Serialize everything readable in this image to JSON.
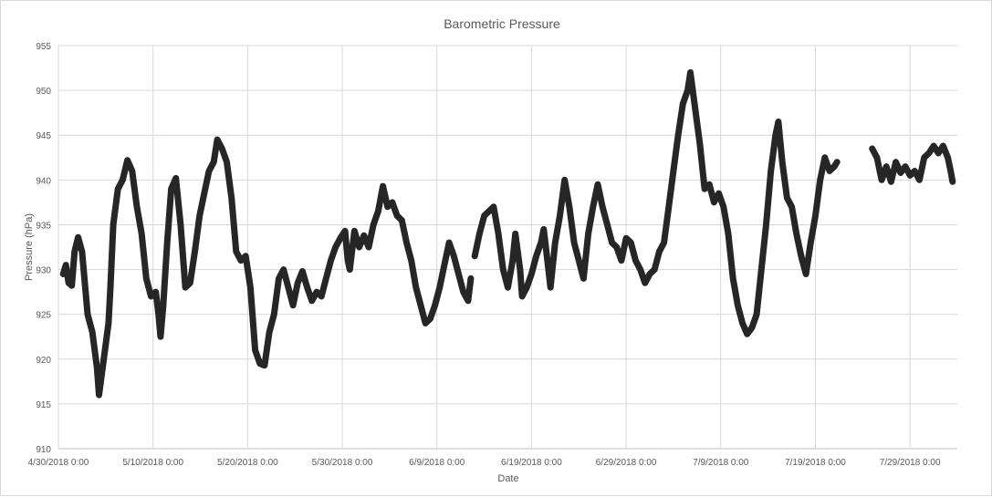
{
  "chart_data": {
    "type": "line",
    "title": "Barometric Pressure",
    "xlabel": "Date",
    "ylabel": "Pressure (hPa)",
    "x_range_days": [
      "4/30/2018 0:00",
      "8/3/2018 0:00"
    ],
    "ylim": [
      910,
      955
    ],
    "y_ticks": [
      910,
      915,
      920,
      925,
      930,
      935,
      940,
      945,
      950,
      955
    ],
    "x_ticks": [
      "4/30/2018 0:00",
      "5/10/2018 0:00",
      "5/20/2018 0:00",
      "5/30/2018 0:00",
      "6/9/2018 0:00",
      "6/19/2018 0:00",
      "6/29/2018 0:00",
      "7/9/2018 0:00",
      "7/19/2018 0:00",
      "7/29/2018 0:00"
    ],
    "grid": true,
    "legend": "none",
    "series_color": "#262626",
    "series": [
      {
        "segments": [
          [
            [
              "4/30/2018 12:00",
              929.5
            ],
            [
              "4/30/2018 19:00",
              930.5
            ],
            [
              "5/1/2018 2:00",
              928.5
            ],
            [
              "5/1/2018 10:00",
              928.2
            ],
            [
              "5/1/2018 17:00",
              932.0
            ],
            [
              "5/2/2018 2:00",
              933.6
            ],
            [
              "5/2/2018 12:00",
              932.0
            ],
            [
              "5/3/2018 2:00",
              925.0
            ],
            [
              "5/3/2018 14:00",
              923.0
            ],
            [
              "5/4/2018 2:00",
              919.0
            ],
            [
              "5/4/2018 7:00",
              916.0
            ],
            [
              "5/4/2018 19:00",
              920.0
            ],
            [
              "5/5/2018 7:00",
              924.0
            ],
            [
              "5/5/2018 12:00",
              928.0
            ],
            [
              "5/5/2018 19:00",
              935.0
            ],
            [
              "5/6/2018 7:00",
              939.0
            ],
            [
              "5/6/2018 19:00",
              940.0
            ],
            [
              "5/7/2018 7:00",
              942.2
            ],
            [
              "5/7/2018 19:00",
              941.0
            ],
            [
              "5/8/2018 7:00",
              937.0
            ],
            [
              "5/8/2018 19:00",
              934.0
            ],
            [
              "5/9/2018 7:00",
              929.0
            ],
            [
              "5/9/2018 19:00",
              927.0
            ],
            [
              "5/10/2018 7:00",
              927.5
            ],
            [
              "5/10/2018 14:00",
              925.0
            ],
            [
              "5/10/2018 19:00",
              922.5
            ],
            [
              "5/11/2018 2:00",
              926.0
            ],
            [
              "5/11/2018 12:00",
              933.0
            ],
            [
              "5/11/2018 22:00",
              939.0
            ],
            [
              "5/12/2018 10:00",
              940.2
            ],
            [
              "5/12/2018 22:00",
              935.0
            ],
            [
              "5/13/2018 10:00",
              928.0
            ],
            [
              "5/13/2018 22:00",
              928.5
            ],
            [
              "5/14/2018 10:00",
              932.0
            ],
            [
              "5/14/2018 22:00",
              936.0
            ],
            [
              "5/15/2018 10:00",
              938.5
            ],
            [
              "5/15/2018 22:00",
              941.0
            ],
            [
              "5/16/2018 10:00",
              942.0
            ],
            [
              "5/16/2018 19:00",
              944.5
            ],
            [
              "5/17/2018 7:00",
              943.5
            ],
            [
              "5/17/2018 19:00",
              942.0
            ],
            [
              "5/18/2018 7:00",
              938.0
            ],
            [
              "5/18/2018 19:00",
              932.0
            ],
            [
              "5/19/2018 7:00",
              931.0
            ],
            [
              "5/19/2018 19:00",
              931.5
            ],
            [
              "5/20/2018 7:00",
              928.0
            ],
            [
              "5/20/2018 19:00",
              921.0
            ],
            [
              "5/21/2018 7:00",
              919.5
            ],
            [
              "5/21/2018 19:00",
              919.3
            ],
            [
              "5/22/2018 7:00",
              923.0
            ],
            [
              "5/22/2018 19:00",
              925.0
            ],
            [
              "5/23/2018 7:00",
              929.0
            ],
            [
              "5/23/2018 19:00",
              930.0
            ],
            [
              "5/24/2018 7:00",
              928.0
            ],
            [
              "5/24/2018 19:00",
              926.0
            ],
            [
              "5/25/2018 7:00",
              928.5
            ],
            [
              "5/25/2018 19:00",
              929.8
            ],
            [
              "5/26/2018 7:00",
              928.0
            ],
            [
              "5/26/2018 19:00",
              926.5
            ],
            [
              "5/27/2018 7:00",
              927.5
            ],
            [
              "5/27/2018 19:00",
              927.0
            ],
            [
              "5/28/2018 7:00",
              929.0
            ],
            [
              "5/28/2018 19:00",
              931.0
            ],
            [
              "5/29/2018 7:00",
              932.5
            ],
            [
              "5/29/2018 19:00",
              933.5
            ],
            [
              "5/30/2018 7:00",
              934.3
            ],
            [
              "5/30/2018 14:00",
              931.0
            ],
            [
              "5/30/2018 19:00",
              930.0
            ],
            [
              "5/31/2018 7:00",
              934.3
            ],
            [
              "5/31/2018 19:00",
              932.5
            ],
            [
              "6/1/2018 7:00",
              933.8
            ],
            [
              "6/1/2018 19:00",
              932.5
            ],
            [
              "6/2/2018 7:00",
              935.0
            ],
            [
              "6/2/2018 19:00",
              936.5
            ],
            [
              "6/3/2018 7:00",
              939.3
            ],
            [
              "6/3/2018 19:00",
              937.0
            ],
            [
              "6/4/2018 7:00",
              937.5
            ],
            [
              "6/4/2018 19:00",
              936.0
            ],
            [
              "6/5/2018 7:00",
              935.5
            ],
            [
              "6/5/2018 19:00",
              933.0
            ],
            [
              "6/6/2018 7:00",
              931.0
            ],
            [
              "6/6/2018 19:00",
              928.0
            ],
            [
              "6/7/2018 7:00",
              926.0
            ],
            [
              "6/7/2018 19:00",
              924.0
            ],
            [
              "6/8/2018 7:00",
              924.5
            ],
            [
              "6/8/2018 19:00",
              926.0
            ],
            [
              "6/9/2018 7:00",
              928.0
            ],
            [
              "6/9/2018 19:00",
              930.5
            ],
            [
              "6/10/2018 7:00",
              933.0
            ],
            [
              "6/10/2018 19:00",
              931.5
            ],
            [
              "6/11/2018 7:00",
              929.5
            ],
            [
              "6/11/2018 19:00",
              927.5
            ],
            [
              "6/12/2018 7:00",
              926.5
            ],
            [
              "6/12/2018 14:00",
              929.0
            ]
          ],
          [
            [
              "6/13/2018 0:00",
              931.5
            ],
            [
              "6/13/2018 12:00",
              934.0
            ],
            [
              "6/14/2018 0:00",
              936.0
            ],
            [
              "6/14/2018 12:00",
              936.5
            ],
            [
              "6/15/2018 0:00",
              937.0
            ],
            [
              "6/15/2018 12:00",
              934.0
            ],
            [
              "6/16/2018 0:00",
              930.0
            ],
            [
              "6/16/2018 12:00",
              928.0
            ],
            [
              "6/17/2018 0:00",
              931.0
            ],
            [
              "6/17/2018 7:00",
              934.0
            ],
            [
              "6/17/2018 19:00",
              930.0
            ],
            [
              "6/18/2018 0:00",
              927.0
            ],
            [
              "6/18/2018 12:00",
              928.0
            ],
            [
              "6/19/2018 0:00",
              929.5
            ],
            [
              "6/19/2018 12:00",
              931.5
            ],
            [
              "6/20/2018 0:00",
              933.0
            ],
            [
              "6/20/2018 7:00",
              934.5
            ],
            [
              "6/20/2018 19:00",
              930.0
            ],
            [
              "6/21/2018 0:00",
              928.0
            ],
            [
              "6/21/2018 12:00",
              933.0
            ],
            [
              "6/22/2018 0:00",
              936.0
            ],
            [
              "6/22/2018 12:00",
              940.0
            ],
            [
              "6/23/2018 0:00",
              937.0
            ],
            [
              "6/23/2018 12:00",
              933.0
            ],
            [
              "6/24/2018 0:00",
              931.0
            ],
            [
              "6/24/2018 12:00",
              929.0
            ],
            [
              "6/25/2018 0:00",
              934.0
            ],
            [
              "6/25/2018 12:00",
              937.0
            ],
            [
              "6/26/2018 0:00",
              939.5
            ],
            [
              "6/26/2018 12:00",
              937.0
            ],
            [
              "6/27/2018 0:00",
              935.0
            ],
            [
              "6/27/2018 12:00",
              933.0
            ],
            [
              "6/28/2018 0:00",
              932.5
            ],
            [
              "6/28/2018 12:00",
              931.0
            ],
            [
              "6/29/2018 0:00",
              933.5
            ],
            [
              "6/29/2018 12:00",
              933.0
            ],
            [
              "6/30/2018 0:00",
              931.0
            ],
            [
              "6/30/2018 12:00",
              930.0
            ],
            [
              "7/1/2018 0:00",
              928.5
            ],
            [
              "7/1/2018 12:00",
              929.5
            ],
            [
              "7/2/2018 0:00",
              930.0
            ],
            [
              "7/2/2018 12:00",
              932.0
            ],
            [
              "7/3/2018 0:00",
              933.0
            ],
            [
              "7/3/2018 12:00",
              937.0
            ],
            [
              "7/4/2018 0:00",
              941.0
            ],
            [
              "7/4/2018 12:00",
              945.0
            ],
            [
              "7/5/2018 0:00",
              948.5
            ],
            [
              "7/5/2018 12:00",
              950.0
            ],
            [
              "7/5/2018 19:00",
              952.0
            ],
            [
              "7/6/2018 7:00",
              948.0
            ],
            [
              "7/6/2018 19:00",
              944.0
            ],
            [
              "7/7/2018 7:00",
              939.0
            ],
            [
              "7/7/2018 19:00",
              939.5
            ],
            [
              "7/8/2018 7:00",
              937.5
            ],
            [
              "7/8/2018 19:00",
              938.5
            ],
            [
              "7/9/2018 7:00",
              937.0
            ],
            [
              "7/9/2018 19:00",
              934.0
            ],
            [
              "7/10/2018 7:00",
              929.0
            ],
            [
              "7/10/2018 19:00",
              926.0
            ],
            [
              "7/11/2018 7:00",
              924.0
            ],
            [
              "7/11/2018 19:00",
              922.8
            ],
            [
              "7/12/2018 7:00",
              923.5
            ],
            [
              "7/12/2018 19:00",
              925.0
            ],
            [
              "7/13/2018 7:00",
              930.0
            ],
            [
              "7/13/2018 19:00",
              935.0
            ],
            [
              "7/14/2018 7:00",
              941.0
            ],
            [
              "7/14/2018 19:00",
              945.0
            ],
            [
              "7/15/2018 2:00",
              946.5
            ],
            [
              "7/15/2018 12:00",
              942.0
            ],
            [
              "7/16/2018 0:00",
              938.0
            ],
            [
              "7/16/2018 12:00",
              937.0
            ],
            [
              "7/17/2018 0:00",
              934.0
            ],
            [
              "7/17/2018 12:00",
              931.5
            ],
            [
              "7/18/2018 0:00",
              929.5
            ],
            [
              "7/18/2018 12:00",
              933.0
            ],
            [
              "7/19/2018 0:00",
              936.0
            ],
            [
              "7/19/2018 12:00",
              940.0
            ],
            [
              "7/20/2018 0:00",
              942.5
            ],
            [
              "7/20/2018 12:00",
              941.0
            ],
            [
              "7/21/2018 0:00",
              941.5
            ],
            [
              "7/21/2018 7:00",
              942.0
            ]
          ],
          [
            [
              "7/25/2018 0:00",
              943.5
            ],
            [
              "7/25/2018 12:00",
              942.5
            ],
            [
              "7/26/2018 0:00",
              940.0
            ],
            [
              "7/26/2018 12:00",
              941.5
            ],
            [
              "7/27/2018 0:00",
              939.8
            ],
            [
              "7/27/2018 12:00",
              942.0
            ],
            [
              "7/28/2018 0:00",
              940.8
            ],
            [
              "7/28/2018 12:00",
              941.5
            ],
            [
              "7/29/2018 0:00",
              940.5
            ],
            [
              "7/29/2018 12:00",
              941.0
            ],
            [
              "7/30/2018 0:00",
              940.0
            ],
            [
              "7/30/2018 12:00",
              942.5
            ],
            [
              "7/31/2018 0:00",
              943.0
            ],
            [
              "7/31/2018 12:00",
              943.8
            ],
            [
              "8/1/2018 0:00",
              943.0
            ],
            [
              "8/1/2018 12:00",
              943.8
            ],
            [
              "8/2/2018 0:00",
              942.5
            ],
            [
              "8/2/2018 7:00",
              941.0
            ],
            [
              "8/2/2018 12:00",
              939.8
            ]
          ]
        ]
      }
    ]
  }
}
